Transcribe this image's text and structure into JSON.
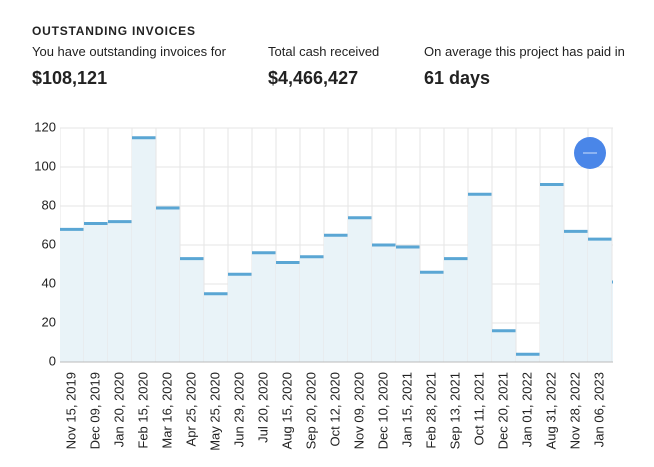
{
  "header": {
    "title": "OUTSTANDING INVOICES"
  },
  "stats": [
    {
      "label": "You have outstanding invoices for",
      "value": "$108,121"
    },
    {
      "label": "Total cash received",
      "value": "$4,466,427"
    },
    {
      "label": "On average this project has paid in",
      "value": "61 days"
    }
  ],
  "chart_data": {
    "type": "step-bar",
    "categories": [
      "Nov 15, 2019",
      "Dec 09, 2019",
      "Jan 20, 2020",
      "Feb 15, 2020",
      "Mar 16, 2020",
      "Apr 25, 2020",
      "May 25, 2020",
      "Jun 29, 2020",
      "Jul 20, 2020",
      "Aug 15, 2020",
      "Sep 20, 2020",
      "Oct 12, 2020",
      "Nov 09, 2020",
      "Dec 10, 2020",
      "Jan 15, 2021",
      "Feb 28, 2021",
      "Sep 13, 2021",
      "Oct 11, 2021",
      "Dec 20, 2021",
      "Jan 01, 2022",
      "Aug 31, 2022",
      "Nov 28, 2022",
      "Jan 06, 2023",
      null
    ],
    "values": [
      68,
      71,
      72,
      115,
      79,
      53,
      35,
      45,
      56,
      51,
      54,
      65,
      74,
      60,
      59,
      46,
      53,
      86,
      16,
      4,
      91,
      67,
      63,
      41
    ],
    "color": "#5aa6d4",
    "ylim": [
      0,
      120
    ],
    "yticks": [
      0,
      20,
      40,
      60,
      80,
      100,
      120
    ],
    "grid": true
  }
}
